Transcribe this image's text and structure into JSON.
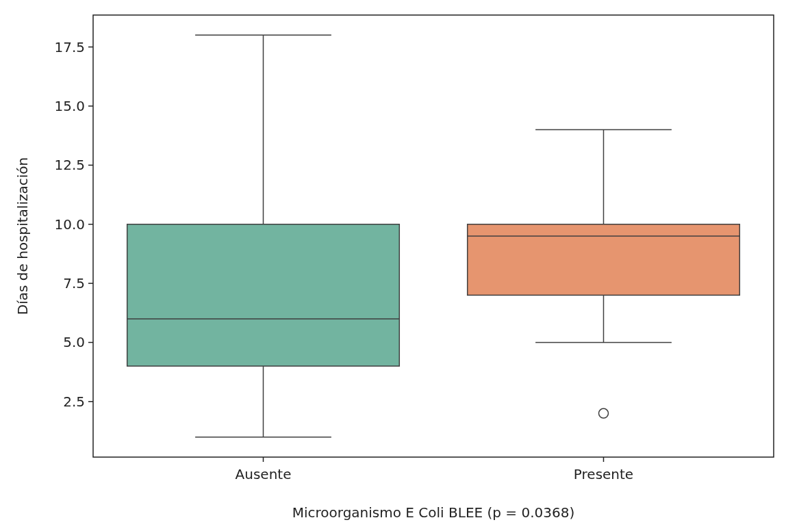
{
  "chart_data": {
    "type": "box",
    "xlabel": "Microorganismo E Coli BLEE (p = 0.0368)",
    "ylabel": "Días de hospitalización",
    "categories": [
      "Ausente",
      "Presente"
    ],
    "colors": [
      "#72b4a0",
      "#e6956f"
    ],
    "boxes": [
      {
        "low": 1,
        "q1": 4,
        "median": 6,
        "q3": 10,
        "high": 18
      },
      {
        "low": 5,
        "q1": 7,
        "median": 9.5,
        "q3": 10,
        "high": 14,
        "outliers": [
          2
        ]
      }
    ],
    "ylim": [
      0.15,
      18.85
    ],
    "yticks": [
      {
        "value": 2.5,
        "label": "2.5"
      },
      {
        "value": 5,
        "label": "5.0"
      },
      {
        "value": 7.5,
        "label": "7.5"
      },
      {
        "value": 10,
        "label": "10.0"
      },
      {
        "value": 12.5,
        "label": "12.5"
      },
      {
        "value": 15,
        "label": "15.0"
      },
      {
        "value": 17.5,
        "label": "17.5"
      }
    ],
    "grid": false
  }
}
